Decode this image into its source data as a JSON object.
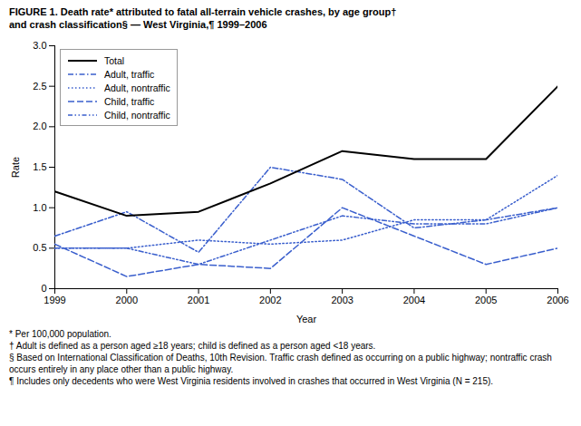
{
  "chart_data": {
    "type": "line",
    "title": "FIGURE 1. Death rate* attributed to fatal all-terrain vehicle crashes, by age group†\nand crash classification§ — West Virginia,¶ 1999–2006",
    "x_label": "Year",
    "y_label": "Rate",
    "x": [
      1999,
      2000,
      2001,
      2002,
      2003,
      2004,
      2005,
      2006
    ],
    "series": [
      {
        "name": "Total",
        "color": "#000000",
        "line_style": "solid",
        "values": [
          1.2,
          0.9,
          0.95,
          1.3,
          1.7,
          1.6,
          1.6,
          2.5
        ]
      },
      {
        "name": "Adult, traffic",
        "color": "#3a5fcd",
        "line_style": "dashdot",
        "values": [
          0.65,
          0.95,
          0.45,
          1.5,
          1.35,
          0.75,
          0.85,
          1.0
        ]
      },
      {
        "name": "Adult, nontraffic",
        "color": "#3a5fcd",
        "line_style": "dotted",
        "values": [
          0.5,
          0.5,
          0.6,
          0.55,
          0.6,
          0.85,
          0.85,
          1.4
        ]
      },
      {
        "name": "Child, traffic",
        "color": "#3a5fcd",
        "line_style": "dashed",
        "values": [
          0.55,
          0.15,
          0.3,
          0.25,
          1.0,
          0.65,
          0.3,
          0.5
        ]
      },
      {
        "name": "Child, nontraffic",
        "color": "#3a5fcd",
        "line_style": "dashdotdot",
        "values": [
          0.5,
          0.5,
          0.3,
          0.6,
          0.9,
          0.8,
          0.8,
          1.0
        ]
      }
    ],
    "xlim": [
      1999,
      2006
    ],
    "xticks": [
      1999,
      2000,
      2001,
      2002,
      2003,
      2004,
      2005,
      2006
    ],
    "ylim": [
      0,
      3.0
    ],
    "yticks": [
      0,
      0.5,
      {
        "value": 1.0,
        "label": "1.0"
      },
      1.5,
      {
        "value": 2.0,
        "label": "2.0"
      },
      2.5,
      {
        "value": 3.0,
        "label": "3.0"
      }
    ],
    "grid": false,
    "legend": "upper left",
    "annotations": [
      "* Per 100,000 population.",
      "† Adult is defined as a person aged ≥18 years; child is defined as a person aged <18 years.",
      "§ Based on International Classification of Deaths, 10th Revision. Traffic crash defined as occurring on a public highway; nontraffic crash occurs entirely in any place other than a public highway.",
      "¶ Includes only decedents who were West Virginia residents involved in crashes that occurred in West Virginia (N = 215)."
    ]
  }
}
